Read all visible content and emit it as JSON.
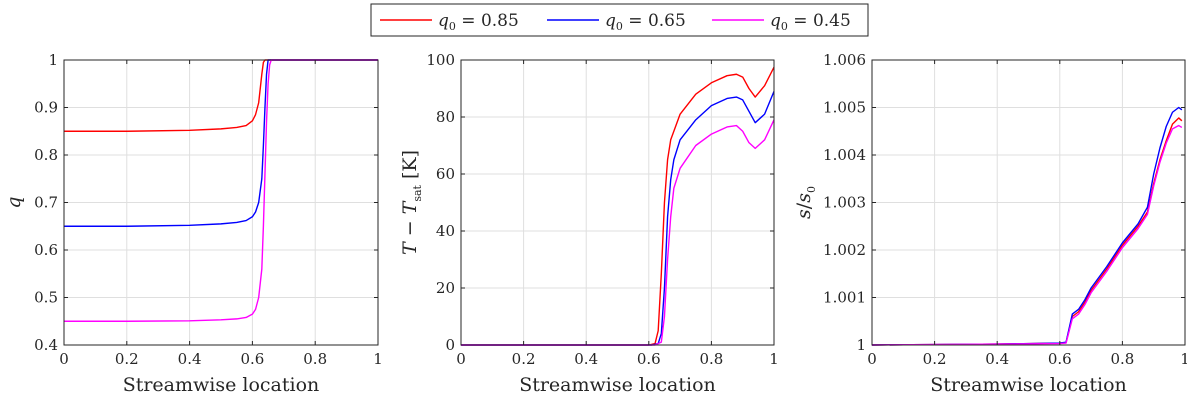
{
  "legend": {
    "placement": "top-center",
    "entries": [
      {
        "label": "q0 = 0.85",
        "symbol": "q",
        "subscript": "0",
        "rest": " = 0.85",
        "color": "#ff0000"
      },
      {
        "label": "q0 = 0.65",
        "symbol": "q",
        "subscript": "0",
        "rest": " = 0.65",
        "color": "#0000ff"
      },
      {
        "label": "q0 = 0.45",
        "symbol": "q",
        "subscript": "0",
        "rest": " = 0.45",
        "color": "#ff00ff"
      }
    ]
  },
  "chart_data": [
    {
      "type": "line",
      "xlabel": "Streamwise location",
      "ylabel": "q",
      "xlim": [
        0,
        1
      ],
      "ylim": [
        0.4,
        1
      ],
      "xticks": [
        0,
        0.2,
        0.4,
        0.6,
        0.8,
        1
      ],
      "xtick_labels": [
        "0",
        "0.2",
        "0.4",
        "0.6",
        "0.8",
        "1"
      ],
      "yticks": [
        0.4,
        0.5,
        0.6,
        0.7,
        0.8,
        0.9,
        1
      ],
      "ytick_labels": [
        "0.4",
        "0.5",
        "0.6",
        "0.7",
        "0.8",
        "0.9",
        "1"
      ],
      "grid": true,
      "series": [
        {
          "name": "q0 = 0.85",
          "color": "#ff0000",
          "x": [
            0,
            0.2,
            0.4,
            0.5,
            0.55,
            0.58,
            0.6,
            0.61,
            0.62,
            0.625,
            0.63,
            0.635,
            0.64,
            1
          ],
          "y": [
            0.85,
            0.85,
            0.852,
            0.855,
            0.858,
            0.862,
            0.872,
            0.885,
            0.91,
            0.94,
            0.97,
            0.995,
            1,
            1
          ]
        },
        {
          "name": "q0 = 0.65",
          "color": "#0000ff",
          "x": [
            0,
            0.2,
            0.4,
            0.5,
            0.55,
            0.58,
            0.6,
            0.61,
            0.62,
            0.63,
            0.635,
            0.64,
            0.645,
            0.65,
            1
          ],
          "y": [
            0.65,
            0.65,
            0.652,
            0.655,
            0.658,
            0.662,
            0.67,
            0.68,
            0.7,
            0.75,
            0.82,
            0.9,
            0.97,
            1,
            1
          ]
        },
        {
          "name": "q0 = 0.45",
          "color": "#ff00ff",
          "x": [
            0,
            0.2,
            0.4,
            0.5,
            0.55,
            0.58,
            0.6,
            0.61,
            0.62,
            0.63,
            0.635,
            0.64,
            0.645,
            0.65,
            0.655,
            0.66,
            1
          ],
          "y": [
            0.45,
            0.45,
            0.451,
            0.453,
            0.455,
            0.458,
            0.465,
            0.475,
            0.5,
            0.56,
            0.65,
            0.76,
            0.87,
            0.95,
            0.99,
            1,
            1
          ]
        }
      ]
    },
    {
      "type": "line",
      "xlabel": "Streamwise location",
      "ylabel": "T − Tsat [K]",
      "xlim": [
        0,
        1
      ],
      "ylim": [
        0,
        100
      ],
      "xticks": [
        0,
        0.2,
        0.4,
        0.6,
        0.8,
        1
      ],
      "xtick_labels": [
        "0",
        "0.2",
        "0.4",
        "0.6",
        "0.8",
        "1"
      ],
      "yticks": [
        0,
        20,
        40,
        60,
        80,
        100
      ],
      "ytick_labels": [
        "0",
        "20",
        "40",
        "60",
        "80",
        "100"
      ],
      "grid": true,
      "series": [
        {
          "name": "q0 = 0.85",
          "color": "#ff0000",
          "x": [
            0,
            0.6,
            0.62,
            0.63,
            0.64,
            0.65,
            0.66,
            0.67,
            0.7,
            0.75,
            0.8,
            0.85,
            0.88,
            0.9,
            0.92,
            0.94,
            0.97,
            1
          ],
          "y": [
            0,
            0,
            0.5,
            5,
            25,
            50,
            65,
            72,
            81,
            88,
            92,
            94.5,
            95,
            94,
            90,
            87,
            91,
            97.5
          ]
        },
        {
          "name": "q0 = 0.65",
          "color": "#0000ff",
          "x": [
            0,
            0.61,
            0.63,
            0.64,
            0.65,
            0.66,
            0.67,
            0.68,
            0.7,
            0.75,
            0.8,
            0.85,
            0.88,
            0.9,
            0.92,
            0.94,
            0.97,
            1
          ],
          "y": [
            0,
            0,
            0.5,
            4,
            20,
            45,
            58,
            65,
            72,
            79,
            84,
            86.5,
            87,
            86,
            82,
            78,
            81,
            89
          ]
        },
        {
          "name": "q0 = 0.45",
          "color": "#ff00ff",
          "x": [
            0,
            0.62,
            0.64,
            0.65,
            0.66,
            0.67,
            0.68,
            0.7,
            0.75,
            0.8,
            0.85,
            0.88,
            0.9,
            0.92,
            0.94,
            0.97,
            1
          ],
          "y": [
            0,
            0,
            1,
            10,
            30,
            45,
            55,
            62,
            70,
            74,
            76.5,
            77,
            75,
            71,
            69,
            72,
            79
          ]
        }
      ]
    },
    {
      "type": "line",
      "xlabel": "Streamwise location",
      "ylabel": "s/s0",
      "xlim": [
        0,
        1
      ],
      "ylim": [
        1,
        1.006
      ],
      "xticks": [
        0,
        0.2,
        0.4,
        0.6,
        0.8,
        1
      ],
      "xtick_labels": [
        "0",
        "0.2",
        "0.4",
        "0.6",
        "0.8",
        "1"
      ],
      "yticks": [
        1,
        1.001,
        1.002,
        1.003,
        1.004,
        1.005,
        1.006
      ],
      "ytick_labels": [
        "1",
        "1.001",
        "1.002",
        "1.003",
        "1.004",
        "1.005",
        "1.006"
      ],
      "grid": true,
      "series": [
        {
          "name": "q0 = 0.85",
          "color": "#ff0000",
          "x": [
            0,
            0.2,
            0.4,
            0.6,
            0.62,
            0.64,
            0.66,
            0.68,
            0.7,
            0.75,
            0.8,
            0.85,
            0.88,
            0.9,
            0.92,
            0.94,
            0.96,
            0.98,
            0.99
          ],
          "y": [
            1,
            1.00001,
            1.00002,
            1.00004,
            1.00005,
            1.0006,
            1.0007,
            1.0009,
            1.00115,
            1.0016,
            1.0021,
            1.0025,
            1.0028,
            1.0034,
            1.0039,
            1.0043,
            1.00465,
            1.00478,
            1.00472
          ]
        },
        {
          "name": "q0 = 0.65",
          "color": "#0000ff",
          "x": [
            0,
            0.2,
            0.4,
            0.6,
            0.62,
            0.64,
            0.66,
            0.68,
            0.7,
            0.75,
            0.8,
            0.85,
            0.88,
            0.9,
            0.92,
            0.94,
            0.96,
            0.98,
            0.99
          ],
          "y": [
            1,
            1.00001,
            1.00002,
            1.00004,
            1.00006,
            1.00065,
            1.00075,
            1.00095,
            1.0012,
            1.00165,
            1.00215,
            1.00255,
            1.0029,
            1.0036,
            1.00415,
            1.0046,
            1.0049,
            1.005,
            1.00495
          ]
        },
        {
          "name": "q0 = 0.45",
          "color": "#ff00ff",
          "x": [
            0,
            0.2,
            0.4,
            0.6,
            0.62,
            0.64,
            0.66,
            0.68,
            0.7,
            0.75,
            0.8,
            0.85,
            0.88,
            0.9,
            0.92,
            0.94,
            0.96,
            0.98,
            0.99
          ],
          "y": [
            1,
            1.00001,
            1.00002,
            1.00003,
            1.00004,
            1.00055,
            1.00065,
            1.00085,
            1.0011,
            1.00155,
            1.00205,
            1.00245,
            1.00275,
            1.00335,
            1.00385,
            1.00425,
            1.00455,
            1.00462,
            1.00458
          ]
        }
      ]
    }
  ]
}
